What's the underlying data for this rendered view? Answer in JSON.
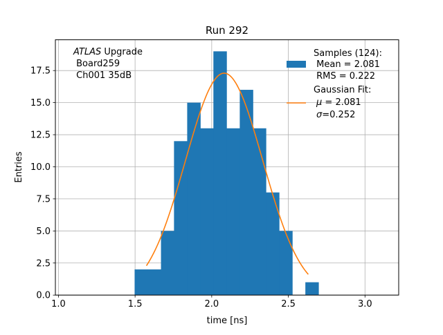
{
  "chart_data": {
    "type": "bar",
    "title": "Run 292",
    "xlabel": "time [ns]",
    "ylabel": "Entries",
    "xlim": [
      0.98,
      3.22
    ],
    "ylim": [
      0,
      19.9
    ],
    "grid": true,
    "x_ticks": [
      1.0,
      1.5,
      2.0,
      2.5,
      3.0
    ],
    "x_tick_labels": [
      "1.0",
      "1.5",
      "2.0",
      "2.5",
      "3.0"
    ],
    "y_ticks": [
      0.0,
      2.5,
      5.0,
      7.5,
      10.0,
      12.5,
      15.0,
      17.5
    ],
    "y_tick_labels": [
      "0.0",
      "2.5",
      "5.0",
      "7.5",
      "10.0",
      "12.5",
      "15.0",
      "17.5"
    ],
    "histogram": {
      "name": "Samples (124):",
      "color": "#1f77b4",
      "bin_edges": [
        1.497,
        1.583,
        1.669,
        1.754,
        1.84,
        1.926,
        2.011,
        2.097,
        2.183,
        2.269,
        2.354,
        2.44,
        2.526,
        2.611,
        2.697
      ],
      "counts": [
        2,
        2,
        5,
        12,
        15,
        13,
        19,
        13,
        16,
        13,
        8,
        5,
        0,
        1
      ]
    },
    "gaussian_fit": {
      "name": "Gaussian Fit:",
      "color": "#ff7f0e",
      "mean": 2.081,
      "sigma": 0.252,
      "amplitude": 17.3,
      "x_range": [
        1.574,
        2.63
      ]
    },
    "annotation": {
      "italic": "ATLAS",
      "rest": " Upgrade",
      "line2": " Board259",
      "line3": " Ch001 35dB"
    },
    "legend": {
      "position": "upper right",
      "samples_title": "Samples (124):",
      "samples_mean": " Mean = 2.081",
      "samples_rms": " RMS = 0.222",
      "fit_title": "Gaussian Fit:",
      "fit_mu_symbol": "μ",
      "fit_mu_value": " = 2.081",
      "fit_sigma_symbol": "σ",
      "fit_sigma_value": "=0.252"
    }
  }
}
